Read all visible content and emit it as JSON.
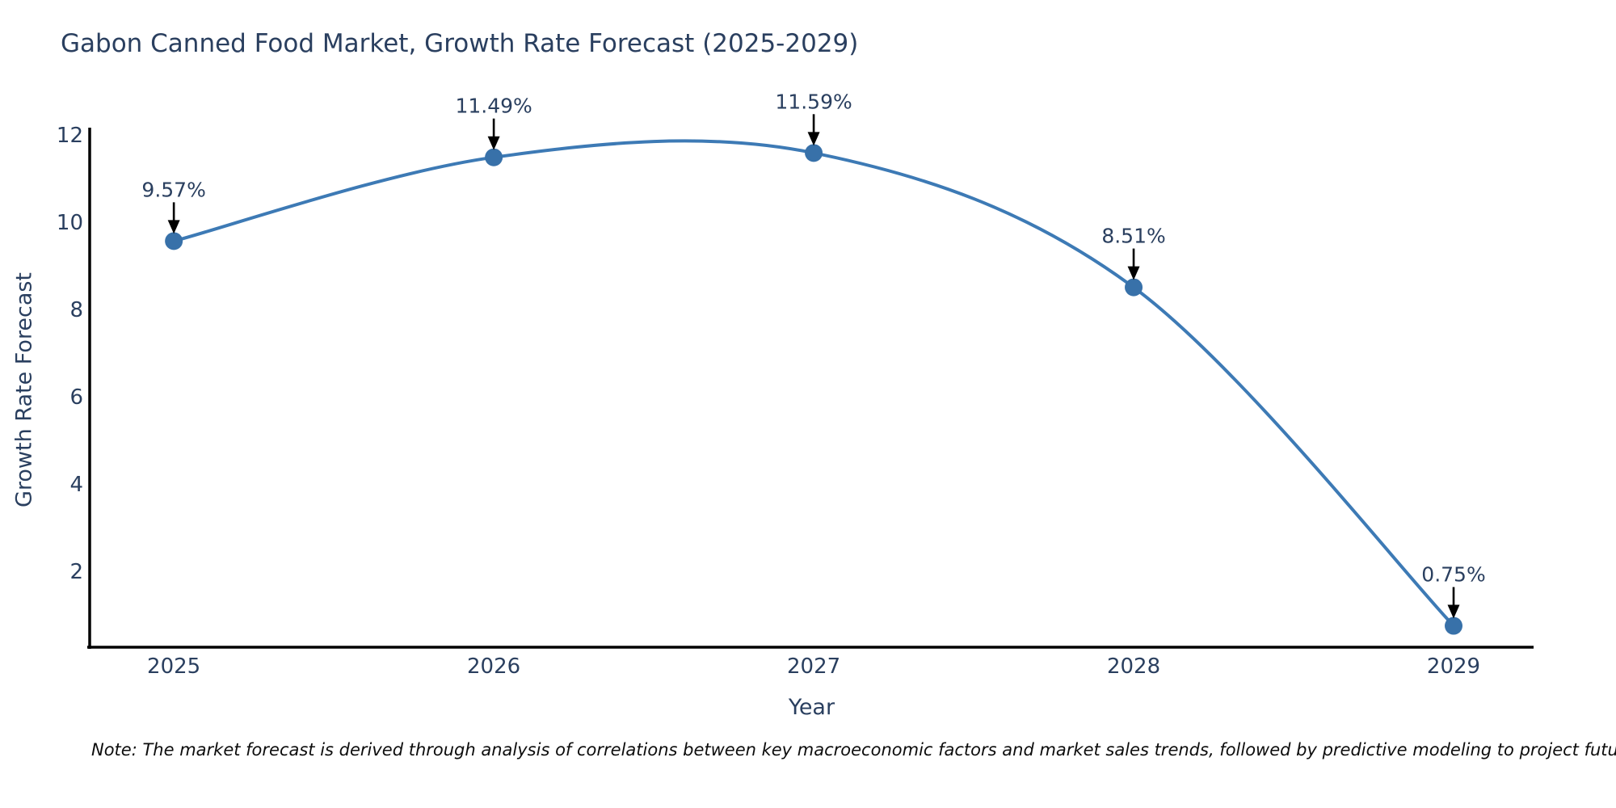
{
  "chart_data": {
    "type": "line",
    "title": "Gabon Canned Food Market, Growth Rate Forecast (2025-2029)",
    "xlabel": "Year",
    "ylabel": "Growth Rate Forecast",
    "x": [
      2025,
      2026,
      2027,
      2028,
      2029
    ],
    "y": [
      9.57,
      11.49,
      11.59,
      8.51,
      0.75
    ],
    "point_labels": [
      "9.57%",
      "11.49%",
      "11.59%",
      "8.51%",
      "0.75%"
    ],
    "xticks": [
      "2025",
      "2026",
      "2027",
      "2028",
      "2029"
    ],
    "yticks": [
      2,
      4,
      6,
      8,
      10,
      12
    ],
    "xlim": [
      2024.737,
      2029.25
    ],
    "ylim": [
      0.26,
      12.17
    ],
    "line_shape": "spline",
    "grid": false,
    "legend": "none",
    "colors": {
      "line": "#3d7ab5",
      "marker": "#3871a9",
      "arrow": "#000000",
      "axis": "#000000",
      "tick_text": "#2a3f5f",
      "label_text": "#2a3f5f"
    }
  },
  "note": "Note: The market forecast is derived through analysis of correlations between key macroeconomic factors and market sales trends, followed by predictive modeling to project future sales"
}
